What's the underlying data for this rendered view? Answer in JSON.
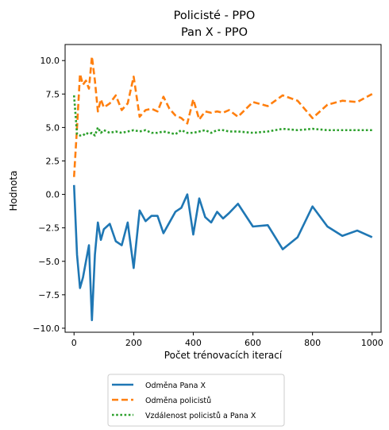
{
  "chart_data": {
    "type": "line",
    "title_lines": [
      "Policisté - PPO",
      "Pan X - PPO"
    ],
    "xlabel": "Počet trénovacích iterací",
    "ylabel": "Hodnota",
    "xlim": [
      -30,
      1030
    ],
    "ylim": [
      -10.3,
      11.2
    ],
    "xticks": [
      0,
      200,
      400,
      600,
      800,
      1000
    ],
    "yticks": [
      -10.0,
      -7.5,
      -5.0,
      -2.5,
      0.0,
      2.5,
      5.0,
      7.5,
      10.0
    ],
    "xtick_labels": [
      "0",
      "200",
      "400",
      "600",
      "800",
      "1000"
    ],
    "ytick_labels": [
      "−10.0",
      "−7.5",
      "−5.0",
      "−2.5",
      "0.0",
      "2.5",
      "5.0",
      "7.5",
      "10.0"
    ],
    "grid": false,
    "legend_position": "below",
    "series": [
      {
        "name": "Odměna Pana X",
        "color": "#1f77b4",
        "style": "solid",
        "x": [
          0,
          10,
          20,
          30,
          40,
          50,
          60,
          70,
          80,
          90,
          100,
          120,
          140,
          160,
          180,
          200,
          220,
          240,
          260,
          280,
          300,
          320,
          340,
          360,
          380,
          400,
          420,
          440,
          460,
          480,
          500,
          520,
          550,
          600,
          650,
          700,
          750,
          800,
          850,
          900,
          950,
          1000
        ],
        "y": [
          0.7,
          -4.5,
          -7.0,
          -6.2,
          -5.0,
          -3.8,
          -9.4,
          -4.5,
          -2.1,
          -3.4,
          -2.6,
          -2.2,
          -3.5,
          -3.8,
          -2.1,
          -5.5,
          -1.2,
          -2.0,
          -1.6,
          -1.6,
          -2.9,
          -2.1,
          -1.3,
          -1.0,
          0.0,
          -3.0,
          -0.3,
          -1.7,
          -2.1,
          -1.3,
          -1.8,
          -1.4,
          -0.7,
          -2.4,
          -2.3,
          -4.1,
          -3.2,
          -0.9,
          -2.4,
          -3.1,
          -2.7,
          -3.2
        ]
      },
      {
        "name": "Odměna policistů",
        "color": "#ff7f0e",
        "style": "dashed",
        "x": [
          0,
          10,
          20,
          30,
          40,
          50,
          60,
          70,
          80,
          90,
          100,
          120,
          140,
          160,
          180,
          200,
          220,
          240,
          260,
          280,
          300,
          320,
          340,
          360,
          380,
          400,
          420,
          440,
          460,
          480,
          500,
          520,
          550,
          600,
          650,
          700,
          750,
          800,
          850,
          900,
          950,
          1000
        ],
        "y": [
          1.3,
          5.0,
          9.0,
          8.2,
          8.5,
          7.9,
          10.3,
          8.5,
          6.2,
          7.1,
          6.5,
          6.8,
          7.4,
          6.3,
          6.8,
          8.8,
          5.8,
          6.3,
          6.4,
          6.2,
          7.3,
          6.4,
          5.9,
          5.7,
          5.3,
          7.1,
          5.6,
          6.2,
          6.1,
          6.2,
          6.1,
          6.3,
          5.8,
          6.9,
          6.6,
          7.4,
          7.0,
          5.7,
          6.7,
          7.0,
          6.9,
          7.5
        ]
      },
      {
        "name": "Vzdálenost policistů a Pana X",
        "color": "#2ca02c",
        "style": "dotted",
        "x": [
          0,
          10,
          20,
          30,
          40,
          50,
          60,
          70,
          80,
          90,
          100,
          120,
          140,
          160,
          180,
          200,
          220,
          240,
          260,
          280,
          300,
          320,
          340,
          360,
          380,
          400,
          420,
          440,
          460,
          480,
          500,
          520,
          550,
          600,
          650,
          700,
          750,
          800,
          850,
          900,
          950,
          1000
        ],
        "y": [
          7.4,
          4.5,
          4.4,
          4.4,
          4.6,
          4.5,
          4.6,
          4.4,
          5.0,
          4.6,
          4.8,
          4.6,
          4.7,
          4.6,
          4.7,
          4.8,
          4.7,
          4.8,
          4.6,
          4.6,
          4.7,
          4.6,
          4.5,
          4.8,
          4.6,
          4.6,
          4.7,
          4.8,
          4.6,
          4.8,
          4.8,
          4.7,
          4.7,
          4.6,
          4.7,
          4.9,
          4.8,
          4.9,
          4.8,
          4.8,
          4.8,
          4.8
        ]
      }
    ]
  }
}
